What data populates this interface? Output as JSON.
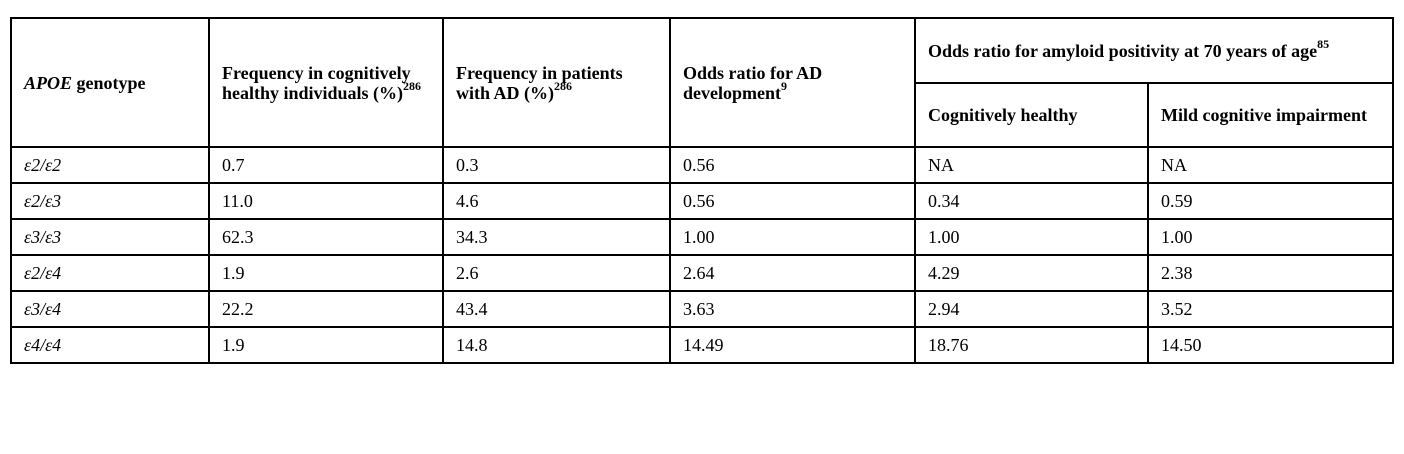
{
  "table": {
    "headers": {
      "genotype": {
        "italic": "APOE",
        "rest": " genotype"
      },
      "freq_healthy": {
        "text": "Frequency in cognitively healthy individuals (%)",
        "sup": "286"
      },
      "freq_ad": {
        "text": "Frequency in patients with AD (%)",
        "sup": "286"
      },
      "odds_ad": {
        "text": "Odds ratio for AD development",
        "sup": "9"
      },
      "odds_amyloid_group": {
        "text": "Odds ratio for amyloid positivity at 70 years of age",
        "sup": "85"
      },
      "sub_healthy": "Cognitively healthy",
      "sub_mci": "Mild cognitive impairment"
    },
    "rows": [
      {
        "genotype": "ε2/ε2",
        "freq_healthy": "0.7",
        "freq_ad": "0.3",
        "odds_ad": "0.56",
        "amyloid_healthy": "NA",
        "amyloid_mci": "NA"
      },
      {
        "genotype": "ε2/ε3",
        "freq_healthy": "11.0",
        "freq_ad": "4.6",
        "odds_ad": "0.56",
        "amyloid_healthy": "0.34",
        "amyloid_mci": "0.59"
      },
      {
        "genotype": "ε3/ε3",
        "freq_healthy": "62.3",
        "freq_ad": "34.3",
        "odds_ad": "1.00",
        "amyloid_healthy": "1.00",
        "amyloid_mci": "1.00"
      },
      {
        "genotype": "ε2/ε4",
        "freq_healthy": "1.9",
        "freq_ad": "2.6",
        "odds_ad": "2.64",
        "amyloid_healthy": "4.29",
        "amyloid_mci": "2.38"
      },
      {
        "genotype": "ε3/ε4",
        "freq_healthy": "22.2",
        "freq_ad": "43.4",
        "odds_ad": "3.63",
        "amyloid_healthy": "2.94",
        "amyloid_mci": "3.52"
      },
      {
        "genotype": "ε4/ε4",
        "freq_healthy": "1.9",
        "freq_ad": "14.8",
        "odds_ad": "14.49",
        "amyloid_healthy": "18.76",
        "amyloid_mci": "14.50"
      }
    ]
  }
}
